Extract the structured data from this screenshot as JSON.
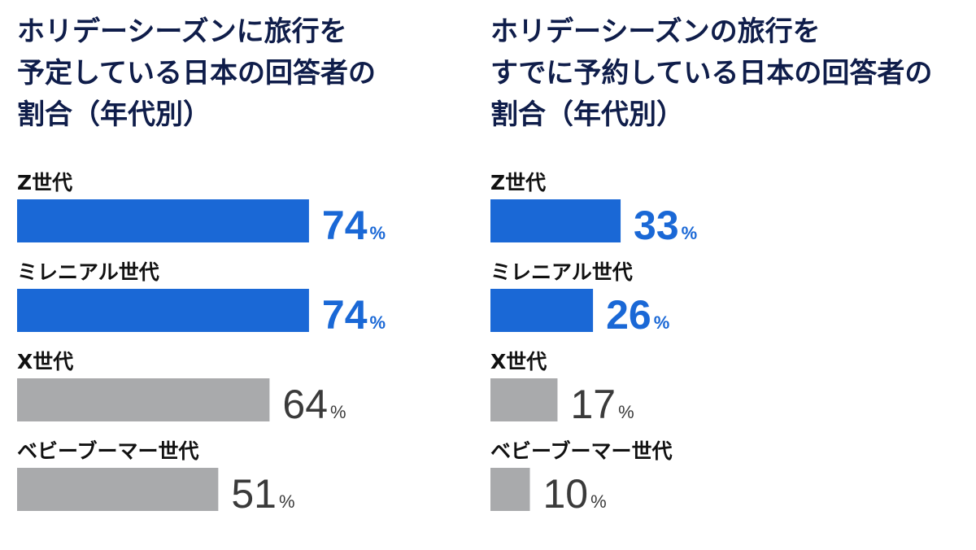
{
  "colors": {
    "highlight": "#1a68d6",
    "muted": "#a9aaac",
    "highlight_text": "#1a68d6",
    "muted_text": "#3a3a3a",
    "title": "#0f1d4a"
  },
  "chart_data": [
    {
      "type": "bar",
      "orientation": "horizontal",
      "title_lines": [
        "ホリデーシーズンに旅行を",
        "予定している日本の回答者の",
        "割合（年代別）"
      ],
      "categories": [
        "Z世代",
        "ミレニアル世代",
        "X世代",
        "ベビーブーマー世代"
      ],
      "values": [
        74,
        74,
        64,
        51
      ],
      "unit": "%",
      "highlighted": [
        true,
        true,
        false,
        false
      ],
      "xlim": [
        0,
        100
      ],
      "grid": false
    },
    {
      "type": "bar",
      "orientation": "horizontal",
      "title_lines": [
        "ホリデーシーズンの旅行を",
        "すでに予約している日本の回答者の",
        "割合（年代別）"
      ],
      "categories": [
        "Z世代",
        "ミレニアル世代",
        "X世代",
        "ベビーブーマー世代"
      ],
      "values": [
        33,
        26,
        17,
        10
      ],
      "unit": "%",
      "highlighted": [
        true,
        true,
        false,
        false
      ],
      "xlim": [
        0,
        100
      ],
      "grid": false
    }
  ]
}
